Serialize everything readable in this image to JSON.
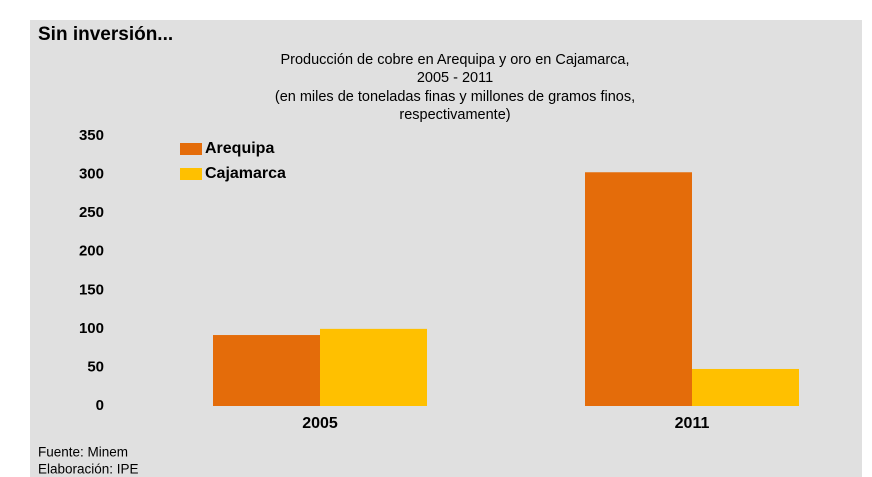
{
  "chart_data": {
    "type": "bar",
    "title": "Sin inversión...",
    "subtitle": [
      "Producción de cobre en Arequipa y oro en Cajamarca,",
      "2005 - 2011",
      "(en miles de toneladas finas y millones de gramos finos,",
      "respectivamente)"
    ],
    "categories": [
      "2005",
      "2011"
    ],
    "series": [
      {
        "name": "Arequipa",
        "color": "#e46c0a",
        "values": [
          92,
          303
        ]
      },
      {
        "name": "Cajamarca",
        "color": "#ffc000",
        "values": [
          100,
          48
        ]
      }
    ],
    "ylim": [
      0,
      350
    ],
    "yticks": [
      0,
      50,
      100,
      150,
      200,
      250,
      300,
      350
    ],
    "grid": false,
    "legend": "top-left",
    "footer": [
      "Fuente: Minem",
      "Elaboración: IPE"
    ]
  }
}
